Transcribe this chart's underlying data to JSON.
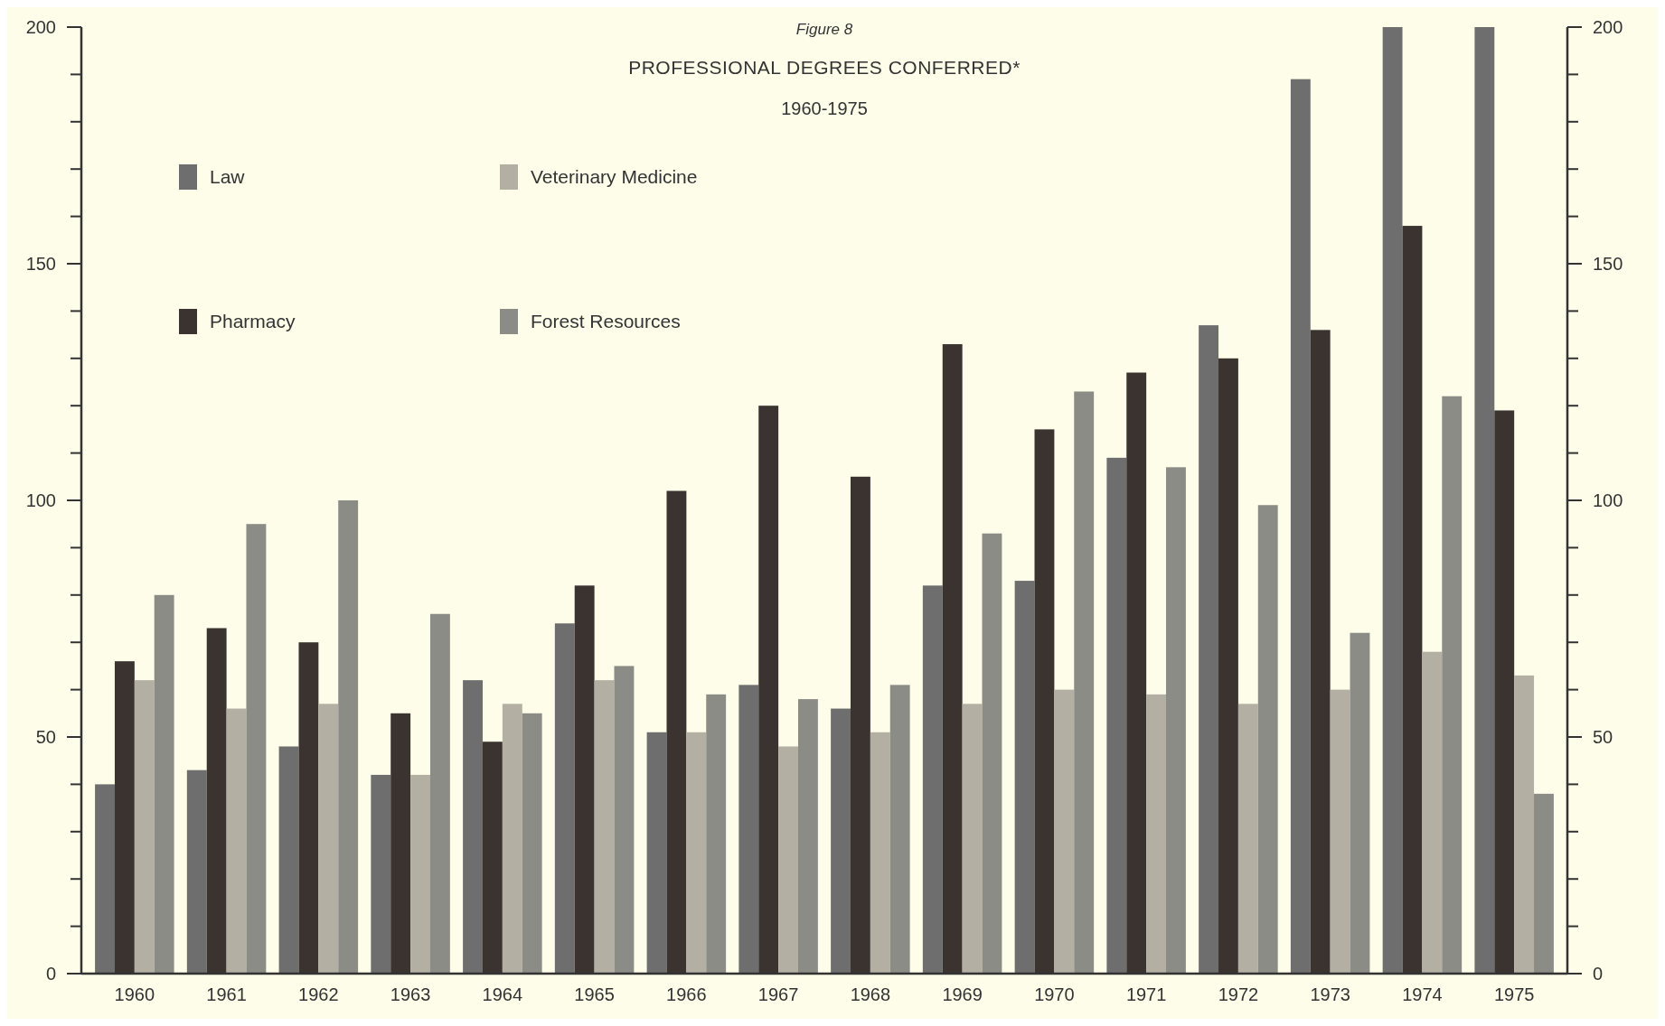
{
  "chart_data": {
    "type": "bar",
    "title": "PROFESSIONAL DEGREES CONFERRED*",
    "subtitle": "1960-1975",
    "annotations": [
      "Figure 8"
    ],
    "categories": [
      "1960",
      "1961",
      "1962",
      "1963",
      "1964",
      "1965",
      "1966",
      "1967",
      "1968",
      "1969",
      "1970",
      "1971",
      "1972",
      "1973",
      "1974",
      "1975"
    ],
    "series": [
      {
        "name": "Law",
        "color": "#6e6e6e",
        "values": [
          40,
          43,
          48,
          42,
          62,
          74,
          51,
          61,
          56,
          82,
          83,
          109,
          137,
          189,
          200,
          200
        ]
      },
      {
        "name": "Pharmacy",
        "color": "#3a3330",
        "values": [
          66,
          73,
          70,
          55,
          49,
          82,
          102,
          120,
          105,
          133,
          115,
          127,
          130,
          136,
          158,
          119
        ]
      },
      {
        "name": "Veterinary Medicine",
        "color": "#b3afa3",
        "values": [
          62,
          56,
          57,
          42,
          57,
          62,
          51,
          48,
          51,
          57,
          60,
          59,
          57,
          60,
          68,
          63
        ]
      },
      {
        "name": "Forest Resources",
        "color": "#8c8c86",
        "values": [
          80,
          95,
          100,
          76,
          55,
          65,
          59,
          58,
          61,
          93,
          123,
          107,
          99,
          72,
          122,
          38
        ]
      }
    ],
    "ylim": [
      0,
      200
    ],
    "yticks": [
      0,
      {
        "value": 10,
        "label": null
      },
      {
        "value": 20,
        "label": null
      },
      {
        "value": 30,
        "label": null
      },
      {
        "value": 40,
        "label": null
      },
      50,
      {
        "value": 60,
        "label": null
      },
      {
        "value": 70,
        "label": null
      },
      {
        "value": 80,
        "label": null
      },
      {
        "value": 90,
        "label": null
      },
      100,
      {
        "value": 110,
        "label": null
      },
      {
        "value": 120,
        "label": null
      },
      {
        "value": 130,
        "label": null
      },
      {
        "value": 140,
        "label": null
      },
      150,
      {
        "value": 160,
        "label": null
      },
      {
        "value": 170,
        "label": null
      },
      {
        "value": 180,
        "label": null
      },
      {
        "value": 190,
        "label": null
      },
      200
    ],
    "y2lim": [
      0,
      200
    ],
    "y2ticks": [
      0,
      {
        "value": 10,
        "label": null
      },
      {
        "value": 20,
        "label": null
      },
      {
        "value": 30,
        "label": null
      },
      {
        "value": 40,
        "label": null
      },
      50,
      {
        "value": 60,
        "label": null
      },
      {
        "value": 70,
        "label": null
      },
      {
        "value": 80,
        "label": null
      },
      {
        "value": 90,
        "label": null
      },
      100,
      {
        "value": 110,
        "label": null
      },
      {
        "value": 120,
        "label": null
      },
      {
        "value": 130,
        "label": null
      },
      {
        "value": 140,
        "label": null
      },
      150,
      {
        "value": 160,
        "label": null
      },
      {
        "value": 170,
        "label": null
      },
      {
        "value": 180,
        "label": null
      },
      {
        "value": 190,
        "label": null
      },
      200
    ],
    "legend": "top left",
    "grid": false
  }
}
